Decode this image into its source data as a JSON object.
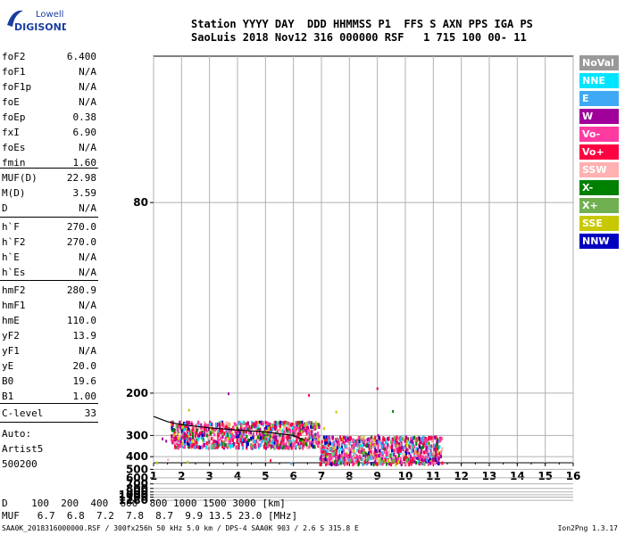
{
  "logo": {
    "line1": "Lowell",
    "line2": "DIGISONDE"
  },
  "header": {
    "line1": "Station YYYY DAY  DDD HHMMSS P1  FFS S AXN PPS IGA PS",
    "line2": "SaoLuis 2018 Nov12 316 000000 RSF   1 715 100 00- 11"
  },
  "params_group1": [
    {
      "name": "foF2",
      "value": "6.400"
    },
    {
      "name": "foF1",
      "value": "N/A"
    },
    {
      "name": "foF1p",
      "value": "N/A"
    },
    {
      "name": "foE",
      "value": "N/A"
    },
    {
      "name": "foEp",
      "value": "0.38"
    },
    {
      "name": "fxI",
      "value": "6.90"
    },
    {
      "name": "foEs",
      "value": "N/A"
    },
    {
      "name": "fmin",
      "value": "1.60"
    }
  ],
  "params_group2": [
    {
      "name": "MUF(D)",
      "value": "22.98"
    },
    {
      "name": "M(D)",
      "value": "3.59"
    },
    {
      "name": "D",
      "value": "N/A"
    }
  ],
  "params_group3": [
    {
      "name": "h`F",
      "value": "270.0"
    },
    {
      "name": "h`F2",
      "value": "270.0"
    },
    {
      "name": "h`E",
      "value": "N/A"
    },
    {
      "name": "h`Es",
      "value": "N/A"
    }
  ],
  "params_group4": [
    {
      "name": "hmF2",
      "value": "280.9"
    },
    {
      "name": "hmF1",
      "value": "N/A"
    },
    {
      "name": "hmE",
      "value": "110.0"
    },
    {
      "name": "yF2",
      "value": "13.9"
    },
    {
      "name": "yF1",
      "value": "N/A"
    },
    {
      "name": "yE",
      "value": "20.0"
    },
    {
      "name": "B0",
      "value": "19.6"
    },
    {
      "name": "B1",
      "value": "1.00"
    }
  ],
  "clevel": {
    "name": "C-level",
    "value": "33"
  },
  "auto": {
    "line1": "Auto:",
    "line2": "Artist5",
    "line3": "500200"
  },
  "legend": [
    {
      "label": "NoVal",
      "color": "#999999"
    },
    {
      "label": "NNE",
      "color": "#00e5ff"
    },
    {
      "label": "E",
      "color": "#3fa9f5"
    },
    {
      "label": "W",
      "color": "#a0009a"
    },
    {
      "label": "Vo-",
      "color": "#ff3aa0"
    },
    {
      "label": "Vo+",
      "color": "#ff0040"
    },
    {
      "label": "SSW",
      "color": "#ffb0b0"
    },
    {
      "label": "X-",
      "color": "#008000"
    },
    {
      "label": "X+",
      "color": "#70b050"
    },
    {
      "label": "SSE",
      "color": "#c8c800"
    },
    {
      "label": "NNW",
      "color": "#0000c0"
    }
  ],
  "bottom": {
    "d_row": "D    100  200  400  600  800 1000 1500 3000 [km]",
    "muf_row": "MUF   6.7  6.8  7.2  7.8  8.7  9.9 13.5 23.0 [MHz]"
  },
  "footer": {
    "left": "SAA0K_2018316000000.RSF / 300fx256h 50 kHz 5.0 km / DPS-4 SAA0K 903 / 2.6 S 315.8 E",
    "right": "Ion2Png 1.3.17"
  },
  "chart_data": {
    "type": "scatter",
    "title": "",
    "xlabel": "",
    "ylabel": "",
    "xlim": [
      1,
      16
    ],
    "ylim": [
      80,
      1280
    ],
    "y_scale": "reciprocal",
    "x_ticks": [
      1,
      2,
      3,
      4,
      5,
      6,
      7,
      8,
      9,
      10,
      11,
      12,
      13,
      14,
      15,
      16
    ],
    "y_ticks_labeled": [
      80,
      200,
      300,
      400,
      500,
      600,
      700,
      800,
      900,
      1000,
      1100,
      1280
    ],
    "y_grid": [
      80,
      200,
      300,
      400,
      500,
      600,
      700,
      800,
      900,
      1000,
      1100,
      1280
    ],
    "grid": true,
    "legend_position": "right",
    "trace_curve": {
      "x": [
        1.0,
        1.5,
        2.0,
        3.0,
        4.0,
        5.0,
        6.0,
        6.4
      ],
      "y": [
        245,
        258,
        266,
        275,
        282,
        288,
        300,
        318
      ]
    },
    "echo_regions": [
      {
        "x": [
          1.6,
          6.9
        ],
        "y": [
          255,
          345
        ],
        "density": "high"
      },
      {
        "x": [
          6.9,
          11.3
        ],
        "y": [
          300,
          470
        ],
        "density": "high"
      },
      {
        "x": [
          2.5,
          5.8
        ],
        "y": [
          520,
          700
        ],
        "density": "low"
      },
      {
        "x": [
          1.0,
          14.0
        ],
        "y": [
          170,
          1280
        ],
        "density": "sparse"
      }
    ]
  }
}
